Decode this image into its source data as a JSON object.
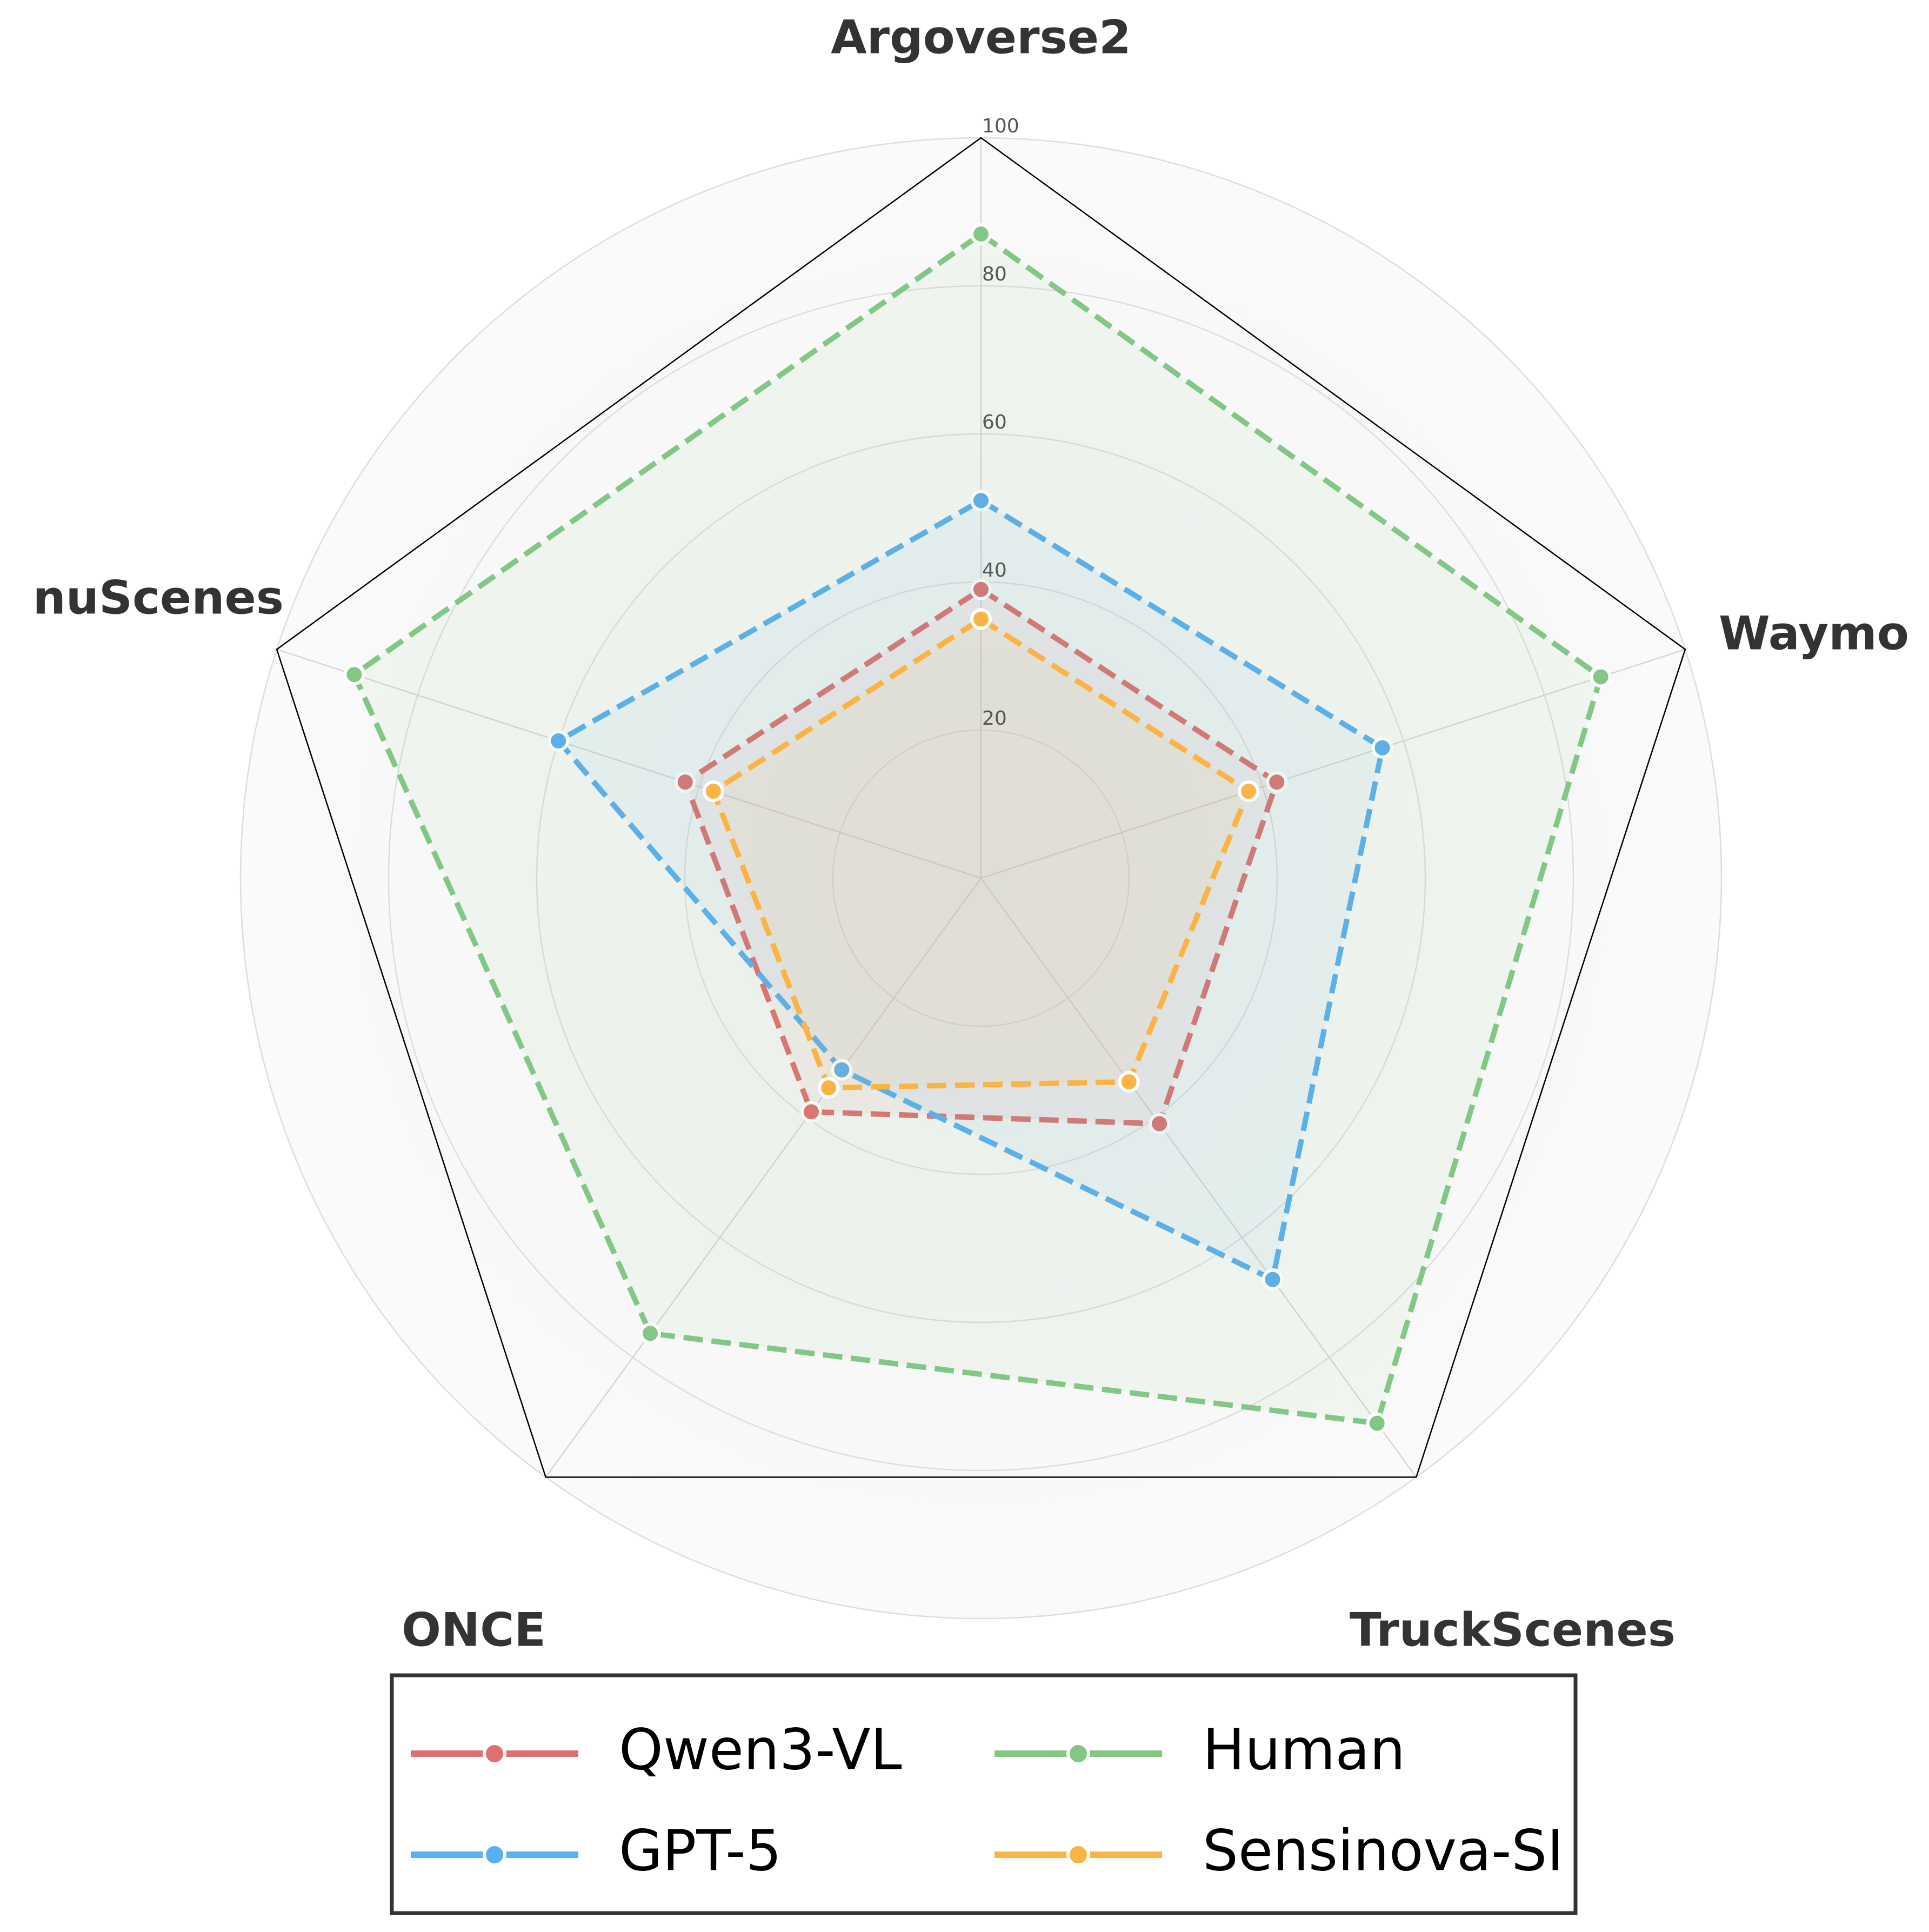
{
  "chart_data": {
    "type": "radar",
    "categories": [
      "Argoverse2",
      "Waymo",
      "TruckScenes",
      "ONCE",
      "nuScenes"
    ],
    "rlim": [
      0,
      100
    ],
    "radial_ticks": [
      "20",
      "40",
      "60",
      "80",
      "100"
    ],
    "grid": true,
    "legend_position": "bottom",
    "series": [
      {
        "name": "Qwen3-VL",
        "values": [
          39,
          42,
          41,
          39,
          42
        ],
        "color": "#e07070"
      },
      {
        "name": "GPT-5",
        "values": [
          51,
          57,
          67,
          32,
          60
        ],
        "color": "#5aafef"
      },
      {
        "name": "Human",
        "values": [
          87,
          88,
          91,
          76,
          89
        ],
        "color": "#82c785"
      },
      {
        "name": "Sensinova-SI",
        "values": [
          35,
          38,
          34,
          35,
          38
        ],
        "color": "#fbb444"
      }
    ],
    "legend_order": [
      "Qwen3-VL",
      "Human",
      "GPT-5",
      "Sensinova-SI"
    ]
  }
}
